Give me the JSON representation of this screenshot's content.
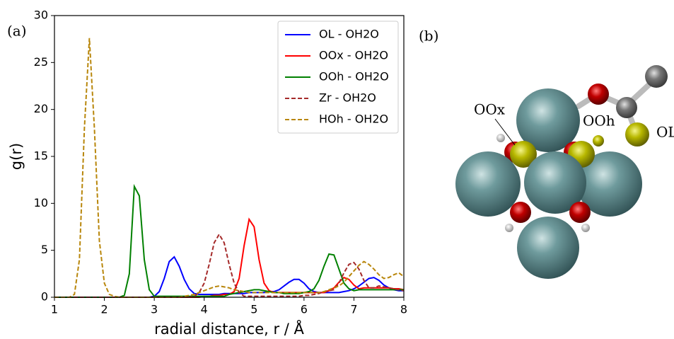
{
  "chart_data": {
    "type": "line",
    "panel_label": "(a)",
    "xlabel": "radial distance, r / Å",
    "ylabel": "g(r)",
    "xlim": [
      1,
      8
    ],
    "ylim": [
      0,
      30
    ],
    "xticks": [
      1,
      2,
      3,
      4,
      5,
      6,
      7,
      8
    ],
    "yticks": [
      0,
      5,
      10,
      15,
      20,
      25,
      30
    ],
    "legend": "upper right",
    "x": [
      1.0,
      1.1,
      1.2,
      1.3,
      1.4,
      1.5,
      1.6,
      1.7,
      1.8,
      1.9,
      2.0,
      2.1,
      2.2,
      2.3,
      2.4,
      2.5,
      2.6,
      2.7,
      2.8,
      2.9,
      3.0,
      3.1,
      3.2,
      3.3,
      3.4,
      3.5,
      3.6,
      3.7,
      3.8,
      3.9,
      4.0,
      4.1,
      4.2,
      4.3,
      4.4,
      4.5,
      4.6,
      4.7,
      4.8,
      4.9,
      5.0,
      5.1,
      5.2,
      5.3,
      5.4,
      5.5,
      5.6,
      5.7,
      5.8,
      5.9,
      6.0,
      6.1,
      6.2,
      6.3,
      6.4,
      6.5,
      6.6,
      6.7,
      6.8,
      6.9,
      7.0,
      7.1,
      7.2,
      7.3,
      7.4,
      7.5,
      7.6,
      7.7,
      7.8,
      7.9,
      8.0
    ],
    "series": [
      {
        "name": "OL - OH2O",
        "color": "#0000ff",
        "dashed": false,
        "values": [
          0,
          0,
          0,
          0,
          0,
          0,
          0,
          0,
          0,
          0,
          0,
          0,
          0,
          0,
          0,
          0,
          0,
          0,
          0,
          0,
          0.1,
          0.6,
          2.0,
          3.8,
          4.3,
          3.3,
          1.9,
          0.9,
          0.4,
          0.3,
          0.3,
          0.3,
          0.3,
          0.3,
          0.4,
          0.4,
          0.4,
          0.4,
          0.4,
          0.5,
          0.5,
          0.5,
          0.5,
          0.6,
          0.6,
          0.8,
          1.2,
          1.6,
          1.9,
          1.9,
          1.5,
          0.9,
          0.6,
          0.5,
          0.5,
          0.5,
          0.5,
          0.5,
          0.6,
          0.7,
          0.9,
          1.2,
          1.6,
          2.0,
          2.1,
          1.8,
          1.3,
          1.0,
          0.8,
          0.7,
          0.7
        ]
      },
      {
        "name": "OOx - OH2O",
        "color": "#ff0000",
        "dashed": false,
        "values": [
          0,
          0,
          0,
          0,
          0,
          0,
          0,
          0,
          0,
          0,
          0,
          0,
          0,
          0,
          0,
          0,
          0,
          0,
          0,
          0,
          0,
          0,
          0,
          0,
          0,
          0,
          0,
          0,
          0,
          0,
          0.1,
          0.1,
          0.2,
          0.2,
          0.3,
          0.3,
          0.6,
          2.0,
          5.5,
          8.3,
          7.5,
          4.0,
          1.5,
          0.7,
          0.5,
          0.5,
          0.5,
          0.5,
          0.5,
          0.5,
          0.5,
          0.5,
          0.5,
          0.5,
          0.5,
          0.7,
          1.0,
          1.6,
          2.1,
          1.9,
          1.3,
          0.9,
          1.0,
          1.0,
          1.0,
          1.0,
          1.0,
          1.0,
          0.9,
          0.9,
          0.8
        ]
      },
      {
        "name": "OOh - OH2O",
        "color": "#008000",
        "dashed": false,
        "values": [
          0,
          0,
          0,
          0,
          0,
          0,
          0,
          0,
          0,
          0,
          0,
          0,
          0,
          0,
          0.2,
          2.5,
          11.8,
          10.8,
          4.0,
          0.8,
          0.1,
          0.1,
          0.1,
          0.1,
          0.1,
          0.1,
          0.1,
          0.1,
          0.1,
          0.1,
          0.1,
          0.1,
          0.1,
          0.1,
          0.1,
          0.3,
          0.4,
          0.5,
          0.6,
          0.7,
          0.8,
          0.8,
          0.7,
          0.6,
          0.5,
          0.5,
          0.4,
          0.4,
          0.4,
          0.4,
          0.5,
          0.6,
          0.9,
          1.8,
          3.3,
          4.6,
          4.5,
          3.0,
          1.5,
          0.9,
          0.7,
          0.8,
          0.8,
          0.8,
          0.8,
          0.8,
          0.8,
          0.8,
          0.8,
          0.8,
          0.8
        ]
      },
      {
        "name": "Zr - OH2O",
        "color": "#a52a2a",
        "dashed": true,
        "values": [
          0,
          0,
          0,
          0,
          0,
          0,
          0,
          0,
          0,
          0,
          0,
          0,
          0,
          0,
          0,
          0,
          0,
          0,
          0,
          0,
          0,
          0,
          0,
          0,
          0,
          0,
          0,
          0,
          0.1,
          0.5,
          1.5,
          3.5,
          5.8,
          6.7,
          5.8,
          3.5,
          1.5,
          0.5,
          0.1,
          0.1,
          0.1,
          0.1,
          0.1,
          0.1,
          0.1,
          0.1,
          0.1,
          0.1,
          0.1,
          0.1,
          0.2,
          0.2,
          0.3,
          0.4,
          0.6,
          0.7,
          0.8,
          1.5,
          2.6,
          3.5,
          3.7,
          3.0,
          1.8,
          1.0,
          1.0,
          1.2,
          1.1,
          1.0,
          0.9,
          0.8,
          0.7
        ]
      },
      {
        "name": "HOh - OH2O",
        "color": "#b8860b",
        "dashed": true,
        "values": [
          0,
          0,
          0,
          0,
          0.3,
          4,
          18,
          27.6,
          18,
          6,
          1.5,
          0.3,
          0.1,
          0,
          0,
          0,
          0,
          0,
          0,
          0,
          0,
          0,
          0,
          0,
          0,
          0,
          0.1,
          0.2,
          0.3,
          0.5,
          0.7,
          0.9,
          1.1,
          1.2,
          1.1,
          1.0,
          0.8,
          0.7,
          0.6,
          0.5,
          0.5,
          0.5,
          0.5,
          0.5,
          0.5,
          0.5,
          0.5,
          0.5,
          0.5,
          0.5,
          0.5,
          0.5,
          0.5,
          0.5,
          0.6,
          0.8,
          1.0,
          1.2,
          1.6,
          2.2,
          2.8,
          3.4,
          3.8,
          3.5,
          3.0,
          2.4,
          2.0,
          2.1,
          2.4,
          2.6,
          2.2
        ]
      }
    ]
  },
  "figure_b": {
    "label": "(b)",
    "atom_labels": [
      "OOx",
      "OOh",
      "OL"
    ]
  }
}
